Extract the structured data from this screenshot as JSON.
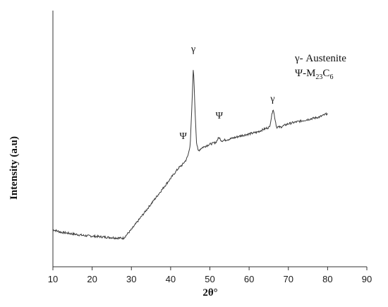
{
  "chart_data": {
    "type": "line",
    "title": "",
    "xlabel": "2θ°",
    "ylabel": "Intensity (a.u)",
    "xlim": [
      10,
      90
    ],
    "xticks": [
      10,
      20,
      30,
      40,
      50,
      60,
      70,
      80,
      90
    ],
    "grid": false,
    "legend_position": "top-right",
    "legend": [
      {
        "symbol": "γ",
        "text": "- Austenite"
      },
      {
        "symbol": "Ψ",
        "text": "-M",
        "sub1": "23",
        "mid": "C",
        "sub2": "6"
      }
    ],
    "annotations": [
      {
        "label": "γ",
        "x": 45.8,
        "y": 108
      },
      {
        "label": "Ψ",
        "x": 43.2,
        "y": 57
      },
      {
        "label": "Ψ",
        "x": 52.4,
        "y": 69
      },
      {
        "label": "γ",
        "x": 66.0,
        "y": 79
      }
    ],
    "series": [
      {
        "x": [
          10,
          12,
          15,
          18,
          21,
          24,
          27,
          28,
          30,
          32,
          34,
          36,
          38,
          40,
          42,
          43,
          44,
          44.5,
          45,
          45.4,
          45.8,
          46.2,
          46.6,
          47,
          47.5,
          48,
          50,
          51.5,
          52.3,
          53,
          55,
          58,
          60,
          62,
          64,
          65.2,
          65.7,
          66.1,
          66.5,
          67,
          68,
          70,
          72,
          74,
          76,
          78,
          80
        ],
        "y": [
          4,
          2.5,
          1.5,
          0.5,
          0,
          -0.5,
          -1,
          -1,
          4,
          10,
          16,
          22,
          28,
          34,
          40,
          42,
          45,
          48,
          54,
          75,
          100,
          75,
          55,
          50,
          51,
          52,
          54,
          55,
          58,
          56,
          57,
          59,
          60,
          61,
          63,
          64,
          70,
          75,
          70,
          64,
          64,
          66,
          67,
          68,
          69,
          70,
          72
        ]
      }
    ]
  }
}
